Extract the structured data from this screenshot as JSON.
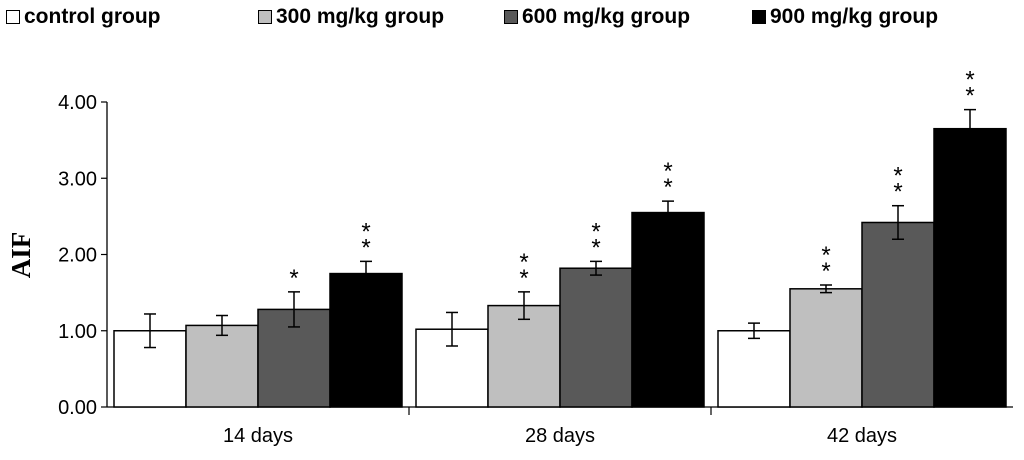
{
  "chart_data": {
    "type": "bar",
    "title": "",
    "xlabel": "",
    "ylabel": "AIF",
    "ylim": [
      0,
      4
    ],
    "yticks": [
      "0.00",
      "1.00",
      "2.00",
      "3.00",
      "4.00"
    ],
    "categories": [
      "14 days",
      "28 days",
      "42 days"
    ],
    "legend_position": "top",
    "series": [
      {
        "name": "control group",
        "color": "#ffffff",
        "values": [
          1.0,
          1.02,
          1.0
        ],
        "errors": [
          0.22,
          0.22,
          0.1
        ],
        "annotations": [
          "",
          "",
          ""
        ]
      },
      {
        "name": "300 mg/kg group",
        "color": "#bfbfbf",
        "values": [
          1.07,
          1.33,
          1.55
        ],
        "errors": [
          0.13,
          0.18,
          0.05
        ],
        "annotations": [
          "",
          "* *",
          "* *"
        ]
      },
      {
        "name": "600 mg/kg group",
        "color": "#595959",
        "values": [
          1.28,
          1.82,
          2.42
        ],
        "errors": [
          0.23,
          0.09,
          0.22
        ],
        "annotations": [
          "*",
          "* *",
          "* *"
        ]
      },
      {
        "name": "900 mg/kg group",
        "color": "#000000",
        "values": [
          1.75,
          2.55,
          3.65
        ],
        "errors": [
          0.16,
          0.15,
          0.25
        ],
        "annotations": [
          "* *",
          "* *",
          "* *"
        ]
      }
    ]
  }
}
